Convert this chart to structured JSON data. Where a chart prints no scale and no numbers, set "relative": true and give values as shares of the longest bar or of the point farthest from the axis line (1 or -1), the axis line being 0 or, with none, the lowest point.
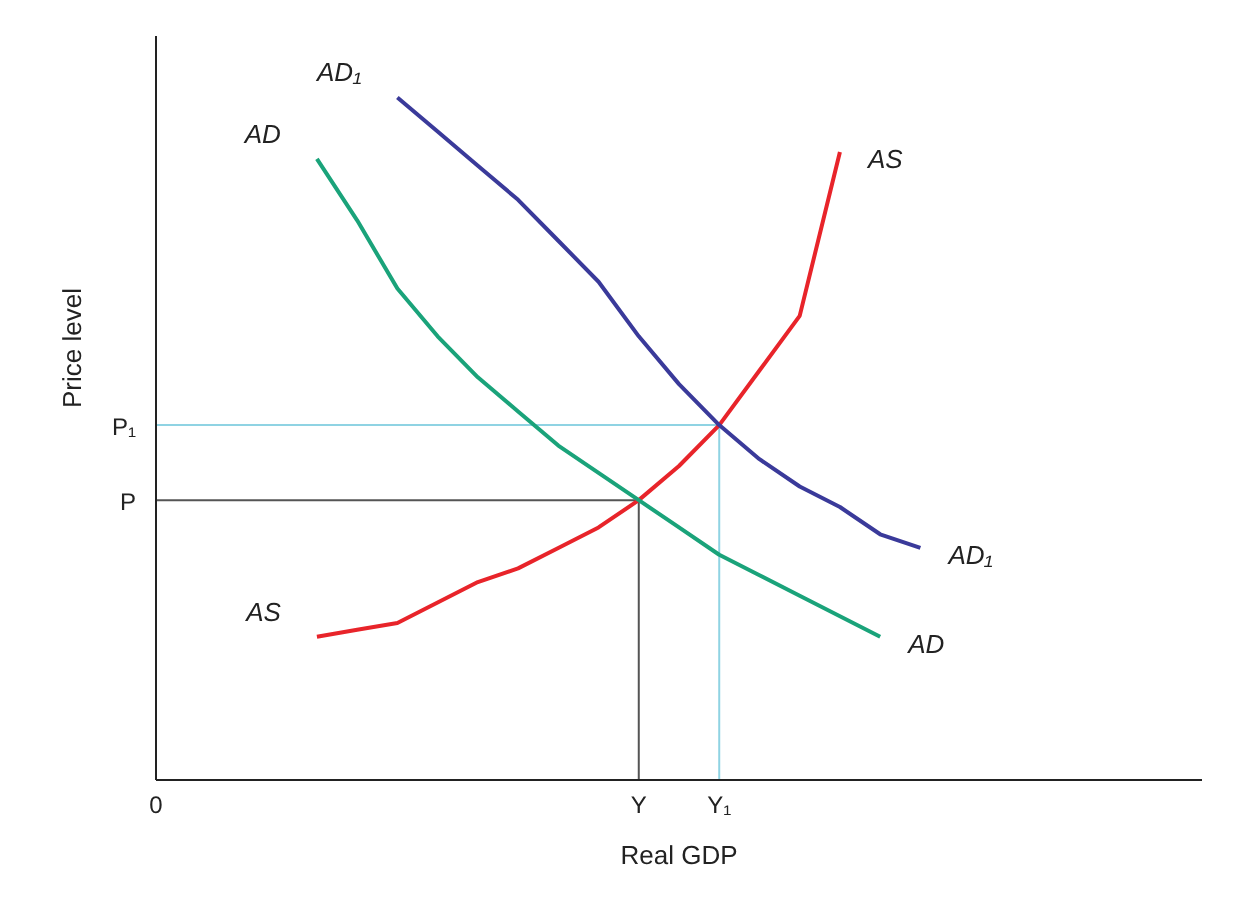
{
  "chart_data": {
    "type": "line",
    "relative": true,
    "xlabel": "Real GDP",
    "ylabel": "Price level",
    "categories": [
      "0",
      null,
      null,
      null,
      null,
      null,
      null,
      null,
      null,
      null,
      null,
      null,
      "Y",
      null,
      "Y₁",
      null,
      null,
      null,
      null,
      null,
      null,
      null,
      null,
      null,
      null,
      null,
      null
    ],
    "grid": false,
    "legend": false,
    "marker": "none",
    "line_style": "solid",
    "series": [
      {
        "name": "P",
        "type": "step",
        "color": "#555555",
        "values": [
          0.41,
          0.41,
          0.41,
          0.41,
          0.41,
          0.41,
          0.41,
          0.41,
          0.41,
          0.41,
          0.41,
          0.41,
          0,
          null,
          null,
          null,
          null,
          null,
          null,
          null,
          null,
          null,
          null,
          null,
          null,
          null,
          null
        ]
      },
      {
        "name": "P₁",
        "type": "step",
        "color": "#8fd3e3",
        "values": [
          0.52,
          0.52,
          0.52,
          0.52,
          0.52,
          0.52,
          0.52,
          0.52,
          0.52,
          0.52,
          0.52,
          0.52,
          0.52,
          0.52,
          0,
          null,
          null,
          null,
          null,
          null,
          null,
          null,
          null,
          null,
          null,
          null,
          null
        ]
      },
      {
        "name": "AS",
        "color": "#e8242a",
        "values": [
          null,
          null,
          null,
          null,
          0.21,
          0.22,
          0.23,
          0.26,
          0.29,
          0.31,
          0.34,
          0.37,
          0.41,
          0.46,
          0.52,
          0.6,
          0.68,
          0.92,
          null,
          null,
          null,
          null,
          null,
          null,
          null,
          null,
          null
        ]
      },
      {
        "name": "AD",
        "color": "#1aa37a",
        "values": [
          null,
          null,
          null,
          null,
          0.91,
          0.82,
          0.72,
          0.65,
          0.59,
          0.54,
          0.49,
          0.45,
          0.41,
          0.37,
          0.33,
          0.3,
          0.27,
          0.24,
          0.21,
          null,
          null,
          null,
          null,
          null,
          null,
          null,
          null
        ]
      },
      {
        "name": "AD₁",
        "color": "#3a3a9a",
        "values": [
          null,
          null,
          null,
          null,
          null,
          null,
          1,
          0.95,
          0.9,
          0.85,
          0.79,
          0.73,
          0.65,
          0.58,
          0.52,
          0.47,
          0.43,
          0.4,
          0.36,
          0.34,
          null,
          null,
          null,
          null,
          null,
          null,
          null
        ]
      }
    ]
  }
}
